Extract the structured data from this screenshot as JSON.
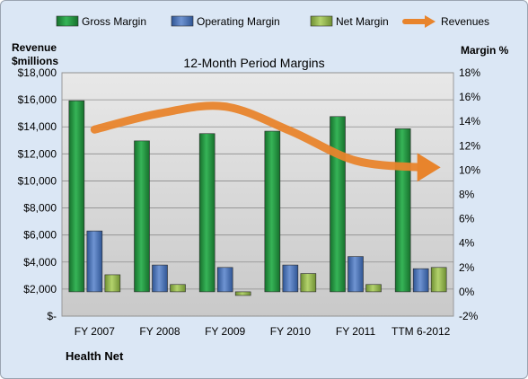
{
  "chart_data": {
    "type": "bar",
    "title": "12-Month Period Margins",
    "company": "Health Net",
    "y_left_label": [
      "Revenue",
      "$millions"
    ],
    "y_right_label": "Margin %",
    "categories": [
      "FY 2007",
      "FY 2008",
      "FY 2009",
      "FY 2010",
      "FY 2011",
      "TTM 6-2012"
    ],
    "series": [
      {
        "name": "Gross Margin",
        "axis": "right",
        "color": "#1e8f3c",
        "values": [
          15.7,
          12.4,
          13.0,
          13.2,
          14.4,
          13.4
        ]
      },
      {
        "name": "Operating Margin",
        "axis": "right",
        "color": "#4a73b8",
        "values": [
          5.0,
          2.2,
          2.0,
          2.2,
          2.9,
          1.9
        ]
      },
      {
        "name": "Net Margin",
        "axis": "right",
        "color": "#8fb24a",
        "values": [
          1.4,
          0.6,
          -0.3,
          1.5,
          0.6,
          2.0
        ]
      },
      {
        "name": "Revenues",
        "axis": "left",
        "type": "line",
        "color": "#e8842c",
        "values": [
          13800,
          15000,
          15500,
          13700,
          11500,
          11000
        ]
      }
    ],
    "y_left_ticks": [
      "$-",
      "$2,000",
      "$4,000",
      "$6,000",
      "$8,000",
      "$10,000",
      "$12,000",
      "$14,000",
      "$16,000",
      "$18,000"
    ],
    "y_right_ticks": [
      "-2%",
      "0%",
      "2%",
      "4%",
      "6%",
      "8%",
      "10%",
      "12%",
      "14%",
      "16%",
      "18%"
    ],
    "y_left_range": [
      0,
      18000
    ],
    "y_right_range": [
      -2,
      18
    ],
    "grid": true,
    "legend_position": "top"
  }
}
